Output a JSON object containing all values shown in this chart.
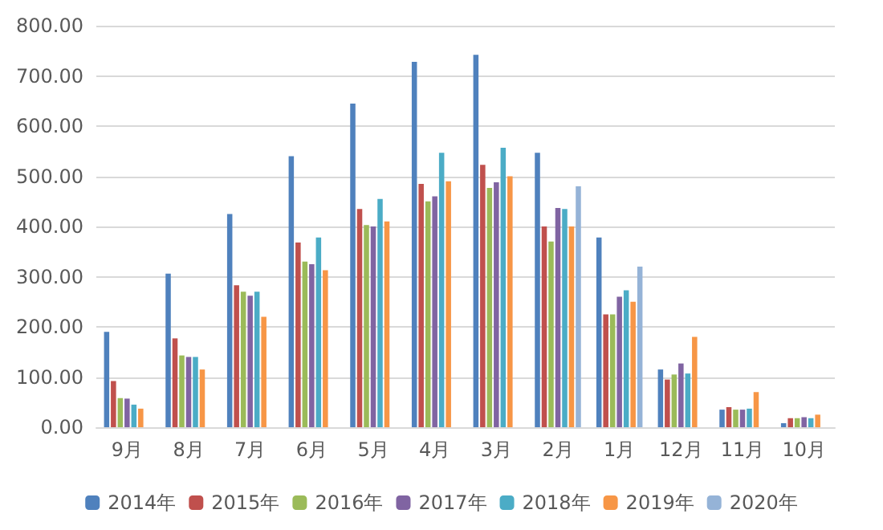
{
  "chart_data": {
    "type": "bar",
    "categories": [
      "9月",
      "8月",
      "7月",
      "6月",
      "5月",
      "4月",
      "3月",
      "2月",
      "1月",
      "12月",
      "11月",
      "10月"
    ],
    "series": [
      {
        "name": "2014年",
        "color": "#4f81bd",
        "values": [
          190,
          306,
          425,
          540,
          645,
          728,
          742,
          547,
          378,
          115,
          35,
          8
        ]
      },
      {
        "name": "2015年",
        "color": "#c0504d",
        "values": [
          92,
          177,
          283,
          368,
          435,
          485,
          523,
          400,
          225,
          95,
          40,
          18
        ]
      },
      {
        "name": "2016年",
        "color": "#9bbb59",
        "values": [
          58,
          143,
          270,
          330,
          403,
          450,
          477,
          370,
          225,
          105,
          35,
          18
        ]
      },
      {
        "name": "2017年",
        "color": "#8064a2",
        "values": [
          57,
          140,
          262,
          325,
          400,
          460,
          488,
          437,
          260,
          127,
          35,
          20
        ]
      },
      {
        "name": "2018年",
        "color": "#4bacc6",
        "values": [
          45,
          140,
          270,
          378,
          455,
          547,
          557,
          435,
          273,
          107,
          37,
          18
        ]
      },
      {
        "name": "2019年",
        "color": "#f79646",
        "values": [
          37,
          115,
          220,
          313,
          410,
          490,
          500,
          400,
          250,
          180,
          70,
          25
        ]
      },
      {
        "name": "2020年",
        "color": "#95b3d7",
        "values": [
          null,
          null,
          null,
          null,
          null,
          null,
          null,
          480,
          320,
          null,
          null,
          null
        ]
      }
    ],
    "ylim": [
      0,
      800
    ],
    "yticks": [
      {
        "value": 0,
        "label": "0.00"
      },
      {
        "value": 100,
        "label": "100.00"
      },
      {
        "value": 200,
        "label": "200.00"
      },
      {
        "value": 300,
        "label": "300.00"
      },
      {
        "value": 400,
        "label": "400.00"
      },
      {
        "value": 500,
        "label": "500.00"
      },
      {
        "value": 600,
        "label": "600.00"
      },
      {
        "value": 700,
        "label": "700.00"
      },
      {
        "value": 800,
        "label": "800.00"
      }
    ],
    "grid": "y",
    "legend": "bottom"
  }
}
